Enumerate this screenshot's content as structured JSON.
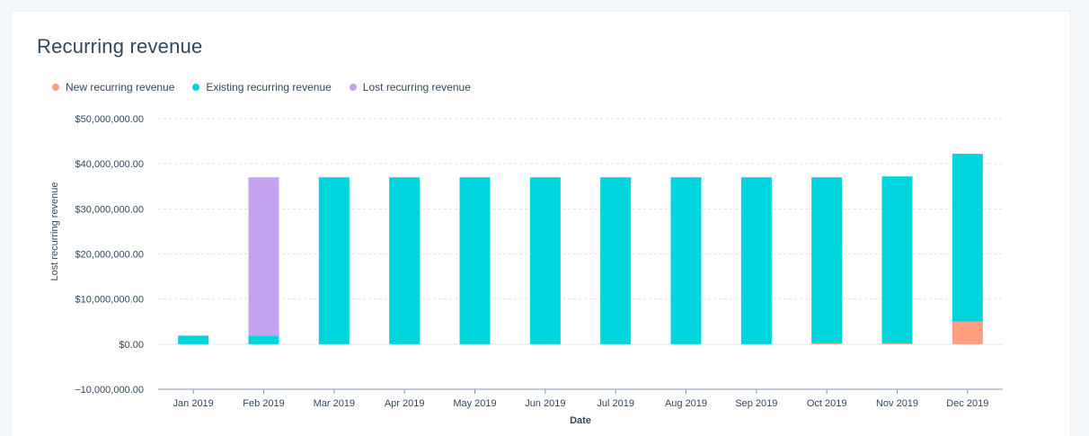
{
  "card": {
    "title": "Recurring revenue"
  },
  "colors": {
    "new": "#ff9f80",
    "existing": "#00d4dc",
    "lost": "#c4a4ee",
    "grid": "#dfe3eb",
    "axis": "#8896a8"
  },
  "chart_data": {
    "type": "bar",
    "stacked": true,
    "title": "Recurring revenue",
    "xlabel": "Date",
    "ylabel": "Lost recurring revenue",
    "ylim": [
      -10000000,
      50000000
    ],
    "yticks": [
      50000000,
      40000000,
      30000000,
      20000000,
      10000000,
      0,
      -10000000
    ],
    "ytick_labels": [
      "$50,000,000.00",
      "$40,000,000.00",
      "$30,000,000.00",
      "$20,000,000.00",
      "$10,000,000.00",
      "$0.00",
      "−10,000,000.00"
    ],
    "grid": true,
    "legend_position": "top-left",
    "categories": [
      "Jan 2019",
      "Feb 2019",
      "Mar 2019",
      "Apr 2019",
      "May 2019",
      "Jun 2019",
      "Jul 2019",
      "Aug 2019",
      "Sep 2019",
      "Oct 2019",
      "Nov 2019",
      "Dec 2019"
    ],
    "series": [
      {
        "key": "new",
        "name": "New recurring revenue",
        "values": [
          0,
          0,
          0,
          0,
          0,
          0,
          0,
          0,
          0,
          200000,
          200000,
          5000000
        ]
      },
      {
        "key": "existing",
        "name": "Existing recurring revenue",
        "values": [
          1900000,
          1900000,
          37000000,
          37000000,
          37000000,
          37000000,
          37000000,
          37000000,
          37000000,
          36800000,
          37000000,
          37200000
        ]
      },
      {
        "key": "lost",
        "name": "Lost recurring revenue",
        "values": [
          0,
          35100000,
          0,
          0,
          0,
          0,
          0,
          0,
          0,
          0,
          0,
          0
        ]
      }
    ]
  }
}
